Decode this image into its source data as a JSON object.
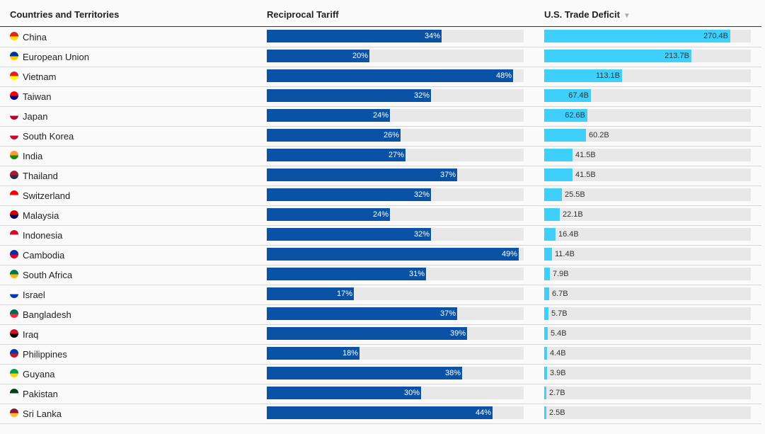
{
  "chart_data": {
    "type": "table",
    "columns": [
      "Countries and Territories",
      "Reciprocal Tariff",
      "U.S. Trade Deficit"
    ],
    "sort_indicator": "▼",
    "tariff_max": 50,
    "deficit_max": 300,
    "rows": [
      {
        "country": "China",
        "tariff": 34,
        "tariff_label": "34%",
        "deficit": 270.4,
        "deficit_label": "270.4B",
        "flag_colors": [
          "#de2910",
          "#ffde00"
        ]
      },
      {
        "country": "European Union",
        "tariff": 20,
        "tariff_label": "20%",
        "deficit": 213.7,
        "deficit_label": "213.7B",
        "flag_colors": [
          "#003399",
          "#ffcc00"
        ]
      },
      {
        "country": "Vietnam",
        "tariff": 48,
        "tariff_label": "48%",
        "deficit": 113.1,
        "deficit_label": "113.1B",
        "flag_colors": [
          "#da251d",
          "#ffff00"
        ]
      },
      {
        "country": "Taiwan",
        "tariff": 32,
        "tariff_label": "32%",
        "deficit": 67.4,
        "deficit_label": "67.4B",
        "flag_colors": [
          "#fe0000",
          "#000095"
        ]
      },
      {
        "country": "Japan",
        "tariff": 24,
        "tariff_label": "24%",
        "deficit": 62.6,
        "deficit_label": "62.6B",
        "flag_colors": [
          "#ffffff",
          "#bc002d"
        ]
      },
      {
        "country": "South Korea",
        "tariff": 26,
        "tariff_label": "26%",
        "deficit": 60.2,
        "deficit_label": "60.2B",
        "flag_colors": [
          "#ffffff",
          "#c60c30"
        ]
      },
      {
        "country": "India",
        "tariff": 27,
        "tariff_label": "27%",
        "deficit": 41.5,
        "deficit_label": "41.5B",
        "flag_colors": [
          "#ff9933",
          "#138808"
        ]
      },
      {
        "country": "Thailand",
        "tariff": 37,
        "tariff_label": "37%",
        "deficit": 41.5,
        "deficit_label": "41.5B",
        "flag_colors": [
          "#a51931",
          "#2d2a4a"
        ]
      },
      {
        "country": "Switzerland",
        "tariff": 32,
        "tariff_label": "32%",
        "deficit": 25.5,
        "deficit_label": "25.5B",
        "flag_colors": [
          "#ff0000",
          "#ffffff"
        ]
      },
      {
        "country": "Malaysia",
        "tariff": 24,
        "tariff_label": "24%",
        "deficit": 22.1,
        "deficit_label": "22.1B",
        "flag_colors": [
          "#cc0001",
          "#010066"
        ]
      },
      {
        "country": "Indonesia",
        "tariff": 32,
        "tariff_label": "32%",
        "deficit": 16.4,
        "deficit_label": "16.4B",
        "flag_colors": [
          "#ce1126",
          "#ffffff"
        ]
      },
      {
        "country": "Cambodia",
        "tariff": 49,
        "tariff_label": "49%",
        "deficit": 11.4,
        "deficit_label": "11.4B",
        "flag_colors": [
          "#032ea1",
          "#e00025"
        ]
      },
      {
        "country": "South Africa",
        "tariff": 31,
        "tariff_label": "31%",
        "deficit": 7.9,
        "deficit_label": "7.9B",
        "flag_colors": [
          "#007749",
          "#ffb612"
        ]
      },
      {
        "country": "Israel",
        "tariff": 17,
        "tariff_label": "17%",
        "deficit": 6.7,
        "deficit_label": "6.7B",
        "flag_colors": [
          "#ffffff",
          "#0038b8"
        ]
      },
      {
        "country": "Bangladesh",
        "tariff": 37,
        "tariff_label": "37%",
        "deficit": 5.7,
        "deficit_label": "5.7B",
        "flag_colors": [
          "#006a4e",
          "#f42a41"
        ]
      },
      {
        "country": "Iraq",
        "tariff": 39,
        "tariff_label": "39%",
        "deficit": 5.4,
        "deficit_label": "5.4B",
        "flag_colors": [
          "#ce1126",
          "#000000"
        ]
      },
      {
        "country": "Philippines",
        "tariff": 18,
        "tariff_label": "18%",
        "deficit": 4.4,
        "deficit_label": "4.4B",
        "flag_colors": [
          "#0038a8",
          "#ce1126"
        ]
      },
      {
        "country": "Guyana",
        "tariff": 38,
        "tariff_label": "38%",
        "deficit": 3.9,
        "deficit_label": "3.9B",
        "flag_colors": [
          "#009e49",
          "#fcd116"
        ]
      },
      {
        "country": "Pakistan",
        "tariff": 30,
        "tariff_label": "30%",
        "deficit": 2.7,
        "deficit_label": "2.7B",
        "flag_colors": [
          "#01411c",
          "#ffffff"
        ]
      },
      {
        "country": "Sri Lanka",
        "tariff": 44,
        "tariff_label": "44%",
        "deficit": 2.5,
        "deficit_label": "2.5B",
        "flag_colors": [
          "#8d153a",
          "#ffbe29"
        ]
      }
    ]
  }
}
